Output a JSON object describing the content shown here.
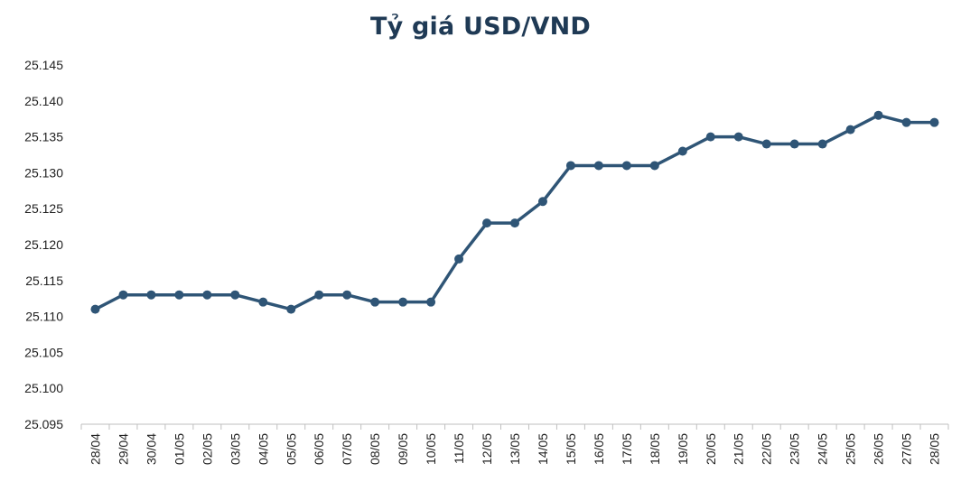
{
  "chart_data": {
    "type": "line",
    "title": "Tỷ giá USD/VND",
    "xlabel": "",
    "ylabel": "",
    "ylim": [
      25.095,
      25.145
    ],
    "yticks": [
      "25.095",
      "25.100",
      "25.105",
      "25.110",
      "25.115",
      "25.120",
      "25.125",
      "25.130",
      "25.135",
      "25.140",
      "25.145"
    ],
    "yticks_values": [
      25.095,
      25.1,
      25.105,
      25.11,
      25.115,
      25.12,
      25.125,
      25.13,
      25.135,
      25.14,
      25.145
    ],
    "grid": false,
    "legend": "none",
    "line_color": "#2f5576",
    "categories": [
      "28/04",
      "29/04",
      "30/04",
      "01/05",
      "02/05",
      "03/05",
      "04/05",
      "05/05",
      "06/05",
      "07/05",
      "08/05",
      "09/05",
      "10/05",
      "11/05",
      "12/05",
      "13/05",
      "14/05",
      "15/05",
      "16/05",
      "17/05",
      "18/05",
      "19/05",
      "20/05",
      "21/05",
      "22/05",
      "23/05",
      "24/05",
      "25/05",
      "26/05",
      "27/05",
      "28/05"
    ],
    "values": [
      25.111,
      25.113,
      25.113,
      25.113,
      25.113,
      25.113,
      25.112,
      25.111,
      25.113,
      25.113,
      25.112,
      25.112,
      25.112,
      25.118,
      25.123,
      25.123,
      25.126,
      25.131,
      25.131,
      25.131,
      25.131,
      25.133,
      25.135,
      25.135,
      25.134,
      25.134,
      25.134,
      25.136,
      25.138,
      25.137,
      25.137
    ]
  }
}
